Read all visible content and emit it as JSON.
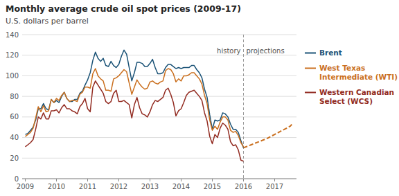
{
  "chart_data": {
    "type": "line",
    "title": "Monthly average crude oil spot prices (2009-17)",
    "subtitle": "U.S. dollars per barrel",
    "x": [
      2009.0,
      2009.083,
      2009.167,
      2009.25,
      2009.333,
      2009.417,
      2009.5,
      2009.583,
      2009.667,
      2009.75,
      2009.833,
      2009.917,
      2010.0,
      2010.083,
      2010.167,
      2010.25,
      2010.333,
      2010.417,
      2010.5,
      2010.583,
      2010.667,
      2010.75,
      2010.833,
      2010.917,
      2011.0,
      2011.083,
      2011.167,
      2011.25,
      2011.333,
      2011.417,
      2011.5,
      2011.583,
      2011.667,
      2011.75,
      2011.833,
      2011.917,
      2012.0,
      2012.083,
      2012.167,
      2012.25,
      2012.333,
      2012.417,
      2012.5,
      2012.583,
      2012.667,
      2012.75,
      2012.833,
      2012.917,
      2013.0,
      2013.083,
      2013.167,
      2013.25,
      2013.333,
      2013.417,
      2013.5,
      2013.583,
      2013.667,
      2013.75,
      2013.833,
      2013.917,
      2014.0,
      2014.083,
      2014.167,
      2014.25,
      2014.333,
      2014.417,
      2014.5,
      2014.583,
      2014.667,
      2014.75,
      2014.833,
      2014.917,
      2015.0,
      2015.083,
      2015.167,
      2015.25,
      2015.333,
      2015.417,
      2015.5,
      2015.583,
      2015.667,
      2015.75,
      2015.833,
      2015.917,
      2016.0
    ],
    "series": [
      {
        "name": "Brent",
        "color": "#1a5276",
        "values": [
          43,
          44,
          47,
          50,
          57,
          68,
          68,
          73,
          68,
          67,
          77,
          74,
          76,
          74,
          80,
          84,
          78,
          75,
          75,
          77,
          77,
          83,
          85,
          91,
          96,
          103,
          115,
          123,
          117,
          114,
          117,
          110,
          109,
          114,
          110,
          108,
          111,
          119,
          125,
          121,
          108,
          95,
          103,
          113,
          113,
          112,
          109,
          109,
          112,
          116,
          108,
          102,
          102,
          103,
          108,
          111,
          111,
          109,
          107,
          108,
          107,
          108,
          108,
          108,
          110,
          110,
          106,
          103,
          98,
          87,
          79,
          62,
          48,
          57,
          56,
          57,
          64,
          63,
          60,
          53,
          48,
          48,
          45,
          37,
          30
        ]
      },
      {
        "name": "West Texas\nIntermediate (WTI)",
        "color": "#ca6f1e",
        "values": [
          41,
          43,
          45,
          49,
          59,
          70,
          65,
          71,
          65,
          66,
          77,
          74,
          78,
          76,
          81,
          84,
          78,
          75,
          76,
          76,
          75,
          82,
          84,
          89,
          89,
          88,
          102,
          107,
          100,
          97,
          95,
          86,
          86,
          85,
          97,
          98,
          100,
          103,
          106,
          104,
          93,
          82,
          89,
          96,
          92,
          89,
          87,
          88,
          94,
          95,
          93,
          92,
          94,
          95,
          105,
          107,
          106,
          102,
          94,
          97,
          95,
          100,
          100,
          101,
          103,
          103,
          100,
          97,
          92,
          81,
          73,
          57,
          47,
          51,
          48,
          55,
          60,
          60,
          57,
          47,
          45,
          46,
          42,
          35,
          31
        ]
      },
      {
        "name": "Western Canadian\nSelect (WCS)",
        "color": "#922b21",
        "values": [
          31,
          33,
          35,
          38,
          48,
          60,
          58,
          64,
          58,
          58,
          66,
          66,
          67,
          64,
          69,
          72,
          68,
          68,
          66,
          65,
          63,
          70,
          73,
          78,
          68,
          65,
          89,
          95,
          91,
          87,
          83,
          75,
          73,
          75,
          83,
          86,
          75,
          75,
          76,
          74,
          72,
          59,
          72,
          79,
          69,
          63,
          62,
          60,
          65,
          72,
          76,
          75,
          77,
          79,
          86,
          88,
          82,
          74,
          61,
          66,
          68,
          74,
          81,
          84,
          85,
          86,
          83,
          80,
          76,
          64,
          56,
          41,
          34,
          43,
          40,
          49,
          54,
          52,
          48,
          36,
          32,
          33,
          28,
          18,
          17
        ]
      },
      {
        "color": "#ca6f1e",
        "line_style": "dashed",
        "x": [
          2016.0,
          2016.25,
          2016.5,
          2016.75,
          2017.0,
          2017.25,
          2017.5,
          2017.583
        ],
        "values": [
          30,
          33,
          36,
          39,
          43,
          47,
          51,
          54
        ]
      }
    ],
    "vlines": [
      {
        "x": 2016.0,
        "line_style": "dashed"
      }
    ],
    "annotations": [
      {
        "text": "history",
        "x": 2016.0,
        "y": 128,
        "side": "left"
      },
      {
        "text": "projections",
        "x": 2016.0,
        "y": 128,
        "side": "right"
      }
    ],
    "xlim": [
      2008.9,
      2017.7
    ],
    "xticks": [
      2009,
      2010,
      2011,
      2012,
      2013,
      2014,
      2015,
      2016,
      2017
    ],
    "ylim": [
      0,
      140
    ],
    "yticks": [
      0,
      20,
      40,
      60,
      80,
      100,
      120,
      140
    ],
    "grid": true,
    "legend": "right"
  }
}
